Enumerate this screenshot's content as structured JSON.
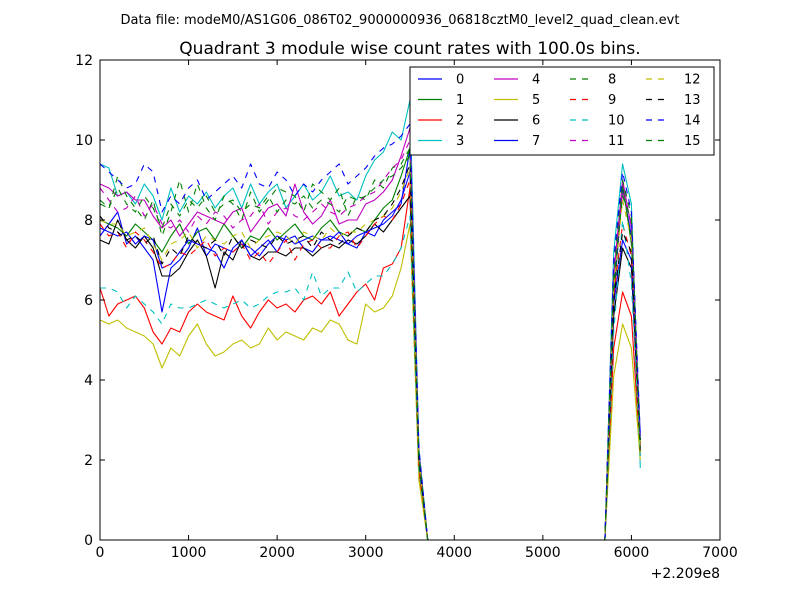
{
  "chart_data": {
    "type": "line",
    "header": "Data file: modeM0/AS1G06_086T02_9000000936_06818cztM0_level2_quad_clean.evt",
    "title": "Quadrant 3 module wise count rates with 100.0s bins.",
    "xlabel": "",
    "ylabel": "",
    "x_offset_label": "+2.209e8",
    "xlim": [
      0,
      7000
    ],
    "ylim": [
      0,
      12
    ],
    "xticks": [
      "0",
      "1000",
      "2000",
      "3000",
      "4000",
      "5000",
      "6000",
      "7000"
    ],
    "yticks": [
      "0",
      "2",
      "4",
      "6",
      "8",
      "10",
      "12"
    ],
    "legend_position": "top-right",
    "x": [
      0,
      100,
      200,
      300,
      400,
      500,
      600,
      700,
      800,
      900,
      1000,
      1100,
      1200,
      1300,
      1400,
      1500,
      1600,
      1700,
      1800,
      1900,
      2000,
      2100,
      2200,
      2300,
      2400,
      2500,
      2600,
      2700,
      2800,
      2900,
      3000,
      3100,
      3200,
      3300,
      3400,
      3500,
      3600,
      3700,
      3800,
      5700,
      5800,
      5900,
      6000,
      6100
    ],
    "series": [
      {
        "name": "0",
        "color": "#0000ff",
        "dash": "solid",
        "values": [
          7.6,
          7.9,
          8.2,
          7.4,
          7.6,
          7.3,
          7.0,
          5.7,
          6.8,
          7.0,
          7.3,
          7.8,
          7.1,
          7.4,
          7.3,
          7.2,
          7.4,
          7.3,
          7.1,
          7.4,
          7.6,
          7.5,
          7.6,
          7.3,
          7.2,
          7.5,
          7.6,
          7.5,
          7.4,
          7.3,
          7.7,
          7.6,
          8.0,
          8.2,
          8.4,
          9.8,
          2.0,
          0,
          0,
          0,
          6.0,
          8.8,
          7.6,
          2.6
        ]
      },
      {
        "name": "1",
        "color": "#008000",
        "dash": "solid",
        "values": [
          8.0,
          7.9,
          7.8,
          7.6,
          7.9,
          7.7,
          7.5,
          7.2,
          7.6,
          7.9,
          7.4,
          7.7,
          7.8,
          7.5,
          7.9,
          7.6,
          7.3,
          7.6,
          7.5,
          7.8,
          7.5,
          7.7,
          7.9,
          7.6,
          7.5,
          7.8,
          8.0,
          7.7,
          7.6,
          7.8,
          7.7,
          8.0,
          8.3,
          8.5,
          9.1,
          9.8,
          2.1,
          0,
          0,
          0,
          6.2,
          8.9,
          7.4,
          2.4
        ]
      },
      {
        "name": "2",
        "color": "#ff0000",
        "dash": "solid",
        "values": [
          6.3,
          5.6,
          5.9,
          6.0,
          6.1,
          5.8,
          5.2,
          4.9,
          5.3,
          5.2,
          5.7,
          5.9,
          5.7,
          5.6,
          5.5,
          6.1,
          5.6,
          5.3,
          5.7,
          6.0,
          5.8,
          5.9,
          5.7,
          6.0,
          6.1,
          5.9,
          6.2,
          5.6,
          5.9,
          6.2,
          6.4,
          6.0,
          6.8,
          6.9,
          7.3,
          8.8,
          1.7,
          0,
          0,
          0,
          4.8,
          6.2,
          5.6,
          2.1
        ]
      },
      {
        "name": "3",
        "color": "#00bfbf",
        "dash": "solid",
        "values": [
          9.4,
          9.3,
          8.6,
          8.7,
          8.4,
          8.9,
          8.6,
          8.0,
          8.8,
          8.2,
          8.6,
          8.4,
          8.7,
          8.3,
          8.6,
          8.8,
          8.3,
          8.9,
          8.4,
          8.7,
          8.9,
          8.3,
          8.6,
          8.9,
          8.5,
          8.7,
          9.1,
          8.6,
          8.7,
          8.5,
          9.1,
          9.5,
          9.7,
          10.2,
          10.0,
          11.0,
          2.3,
          0,
          0,
          0,
          7.2,
          9.4,
          8.4,
          1.8
        ]
      },
      {
        "name": "4",
        "color": "#bf00bf",
        "dash": "solid",
        "values": [
          8.9,
          8.8,
          8.6,
          8.7,
          8.5,
          8.5,
          8.1,
          7.8,
          8.0,
          7.6,
          7.9,
          8.2,
          8.1,
          8.0,
          7.9,
          8.2,
          8.3,
          7.7,
          8.0,
          8.3,
          8.4,
          8.1,
          8.9,
          8.2,
          7.9,
          8.1,
          8.5,
          7.9,
          8.0,
          8.0,
          8.4,
          8.5,
          8.7,
          9.0,
          9.6,
          10.3,
          2.2,
          0,
          0,
          0,
          6.6,
          9.0,
          7.8,
          2.3
        ]
      },
      {
        "name": "5",
        "color": "#bfbf00",
        "dash": "solid",
        "values": [
          5.5,
          5.4,
          5.5,
          5.3,
          5.2,
          5.1,
          4.9,
          4.3,
          4.8,
          4.6,
          5.1,
          5.4,
          4.9,
          4.6,
          4.7,
          4.9,
          5.0,
          4.8,
          4.9,
          5.3,
          5.0,
          5.2,
          5.1,
          5.0,
          5.3,
          5.2,
          5.5,
          5.4,
          5.0,
          4.9,
          5.9,
          5.7,
          5.8,
          6.1,
          6.8,
          7.9,
          1.5,
          0,
          0,
          0,
          4.1,
          5.4,
          4.8,
          2.0
        ]
      },
      {
        "name": "6",
        "color": "#000000",
        "dash": "solid",
        "values": [
          7.5,
          7.4,
          8.0,
          7.5,
          7.3,
          7.6,
          7.3,
          6.6,
          6.6,
          6.8,
          7.2,
          7.5,
          7.1,
          6.3,
          7.2,
          7.0,
          7.5,
          7.1,
          7.0,
          7.2,
          7.2,
          7.1,
          7.3,
          7.3,
          7.1,
          7.3,
          7.4,
          7.3,
          7.5,
          7.4,
          7.6,
          7.9,
          7.7,
          8.0,
          8.3,
          8.6,
          1.9,
          0,
          0,
          0,
          5.6,
          7.3,
          6.8,
          2.2
        ]
      },
      {
        "name": "7",
        "color": "#0000ff",
        "dash": "solid",
        "values": [
          7.8,
          7.7,
          7.6,
          7.7,
          7.4,
          7.6,
          7.5,
          6.8,
          6.9,
          7.2,
          7.5,
          7.4,
          7.3,
          7.2,
          6.8,
          7.3,
          7.5,
          7.1,
          7.3,
          7.5,
          7.2,
          7.6,
          7.4,
          7.5,
          7.6,
          7.5,
          7.5,
          7.7,
          7.4,
          7.6,
          7.7,
          7.8,
          7.9,
          8.1,
          8.5,
          9.2,
          2.0,
          0,
          0,
          0,
          5.9,
          7.5,
          7.0,
          2.5
        ]
      },
      {
        "name": "8",
        "color": "#008000",
        "dash": "dashed",
        "values": [
          8.4,
          8.3,
          9.1,
          8.6,
          8.3,
          8.0,
          8.5,
          7.6,
          8.2,
          9.0,
          8.2,
          8.9,
          8.3,
          8.0,
          8.6,
          8.4,
          8.0,
          8.7,
          8.2,
          8.5,
          8.8,
          8.7,
          8.6,
          8.2,
          8.9,
          8.7,
          8.5,
          8.8,
          8.1,
          8.6,
          8.5,
          9.0,
          8.8,
          9.3,
          9.4,
          9.8,
          2.2,
          0,
          0,
          0,
          6.8,
          9.0,
          8.1,
          2.4
        ]
      },
      {
        "name": "9",
        "color": "#ff0000",
        "dash": "dashed",
        "values": [
          7.9,
          7.6,
          7.7,
          7.3,
          7.7,
          7.5,
          7.2,
          6.8,
          6.9,
          7.2,
          7.1,
          7.3,
          7.5,
          7.1,
          7.3,
          7.2,
          7.4,
          7.0,
          7.2,
          6.9,
          7.2,
          7.5,
          7.0,
          7.4,
          7.5,
          7.3,
          7.3,
          7.6,
          7.7,
          7.3,
          7.6,
          7.9,
          8.1,
          8.0,
          8.4,
          9.0,
          1.9,
          0,
          0,
          0,
          6.1,
          7.9,
          7.1,
          2.3
        ]
      },
      {
        "name": "10",
        "color": "#00bfbf",
        "dash": "dashed",
        "values": [
          6.3,
          6.3,
          6.2,
          5.8,
          6.1,
          5.9,
          5.7,
          5.4,
          5.9,
          5.8,
          5.8,
          5.9,
          6.0,
          5.9,
          5.8,
          5.9,
          6.0,
          5.8,
          5.9,
          6.1,
          6.2,
          6.2,
          6.3,
          6.0,
          6.7,
          6.1,
          6.3,
          6.3,
          6.7,
          6.2,
          6.4,
          6.6,
          6.6,
          6.9,
          7.3,
          8.1,
          1.8,
          0,
          0,
          0,
          5.2,
          8.0,
          6.4,
          2.1
        ]
      },
      {
        "name": "11",
        "color": "#bf00bf",
        "dash": "dashed",
        "values": [
          8.8,
          8.5,
          8.2,
          8.3,
          8.6,
          8.1,
          8.4,
          7.9,
          7.8,
          8.0,
          7.7,
          8.1,
          7.9,
          8.2,
          8.1,
          7.8,
          8.0,
          8.1,
          8.4,
          7.9,
          8.2,
          8.3,
          8.1,
          8.0,
          8.2,
          8.4,
          8.2,
          8.1,
          8.3,
          8.4,
          8.6,
          8.7,
          9.0,
          9.3,
          9.5,
          10.0,
          2.1,
          0,
          0,
          0,
          6.7,
          8.7,
          7.9,
          2.4
        ]
      },
      {
        "name": "12",
        "color": "#bfbf00",
        "dash": "dashed",
        "values": [
          8.0,
          7.9,
          7.9,
          7.6,
          7.7,
          7.8,
          7.4,
          7.0,
          7.4,
          7.5,
          7.7,
          7.3,
          7.6,
          7.5,
          7.4,
          7.6,
          7.7,
          7.3,
          7.5,
          7.6,
          7.7,
          7.6,
          7.4,
          7.7,
          7.6,
          7.5,
          7.8,
          7.6,
          7.7,
          7.7,
          7.9,
          8.0,
          8.1,
          8.3,
          8.7,
          9.3,
          2.0,
          0,
          0,
          0,
          6.3,
          8.5,
          7.5,
          2.2
        ]
      },
      {
        "name": "13",
        "color": "#000000",
        "dash": "dashed",
        "values": [
          8.1,
          7.8,
          7.7,
          7.5,
          7.6,
          7.4,
          7.6,
          6.9,
          7.3,
          7.1,
          7.6,
          7.4,
          7.3,
          7.5,
          7.1,
          7.6,
          7.3,
          7.5,
          7.4,
          7.3,
          7.6,
          7.4,
          7.5,
          7.6,
          7.3,
          7.7,
          7.5,
          7.4,
          7.6,
          7.8,
          7.7,
          8.0,
          8.1,
          8.4,
          8.8,
          9.4,
          2.0,
          0,
          0,
          0,
          6.0,
          7.7,
          7.2,
          2.5
        ]
      },
      {
        "name": "14",
        "color": "#0000ff",
        "dash": "dashed",
        "values": [
          9.4,
          9.2,
          9.0,
          8.8,
          8.9,
          9.4,
          9.2,
          8.2,
          8.6,
          8.4,
          8.8,
          9.0,
          8.5,
          8.7,
          8.9,
          9.1,
          8.8,
          9.4,
          8.9,
          8.8,
          9.2,
          9.0,
          8.6,
          8.9,
          8.7,
          9.0,
          9.2,
          9.4,
          8.9,
          9.1,
          9.3,
          9.6,
          9.8,
          9.9,
          10.1,
          10.4,
          2.3,
          0,
          0,
          0,
          7.0,
          9.2,
          8.2,
          2.6
        ]
      },
      {
        "name": "15",
        "color": "#008000",
        "dash": "dashed",
        "values": [
          8.5,
          8.3,
          8.8,
          8.4,
          8.2,
          8.6,
          8.3,
          7.8,
          8.4,
          8.1,
          8.5,
          8.3,
          8.6,
          8.2,
          8.4,
          8.5,
          8.2,
          8.4,
          8.3,
          8.6,
          8.2,
          8.5,
          8.4,
          8.6,
          8.3,
          8.5,
          8.4,
          8.2,
          8.6,
          8.5,
          8.6,
          8.8,
          9.0,
          9.1,
          9.3,
          9.6,
          2.1,
          0,
          0,
          0,
          6.5,
          8.6,
          8.0,
          2.3
        ]
      }
    ]
  }
}
